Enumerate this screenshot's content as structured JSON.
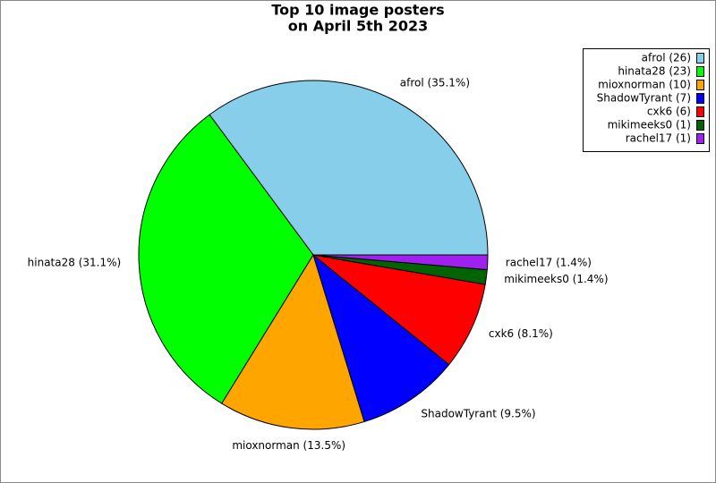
{
  "chart_data": {
    "type": "pie",
    "title": [
      "Top 10 image posters",
      "on April 5th 2023"
    ],
    "categories": [
      "afrol",
      "hinata28",
      "mioxnorman",
      "ShadowTyrant",
      "cxk6",
      "mikimeeks0",
      "rachel17"
    ],
    "values": [
      26,
      23,
      10,
      7,
      6,
      1,
      1
    ],
    "colors": [
      "#87ceeb",
      "#00ff00",
      "#ffa500",
      "#0000ff",
      "#ff0000",
      "#006400",
      "#a020f0"
    ],
    "slice_labels": [
      "afrol (35.1%)",
      "hinata28 (31.1%)",
      "mioxnorman (13.5%)",
      "ShadowTyrant (9.5%)",
      "cxk6 (8.1%)",
      "mikimeeks0 (1.4%)",
      "rachel17 (1.4%)"
    ],
    "legend_labels": [
      "afrol (26)",
      "hinata28 (23)",
      "mioxnorman (10)",
      "ShadowTyrant (7)",
      "cxk6 (6)",
      "mikimeeks0 (1)",
      "rachel17 (1)"
    ],
    "legend": "upper right"
  }
}
